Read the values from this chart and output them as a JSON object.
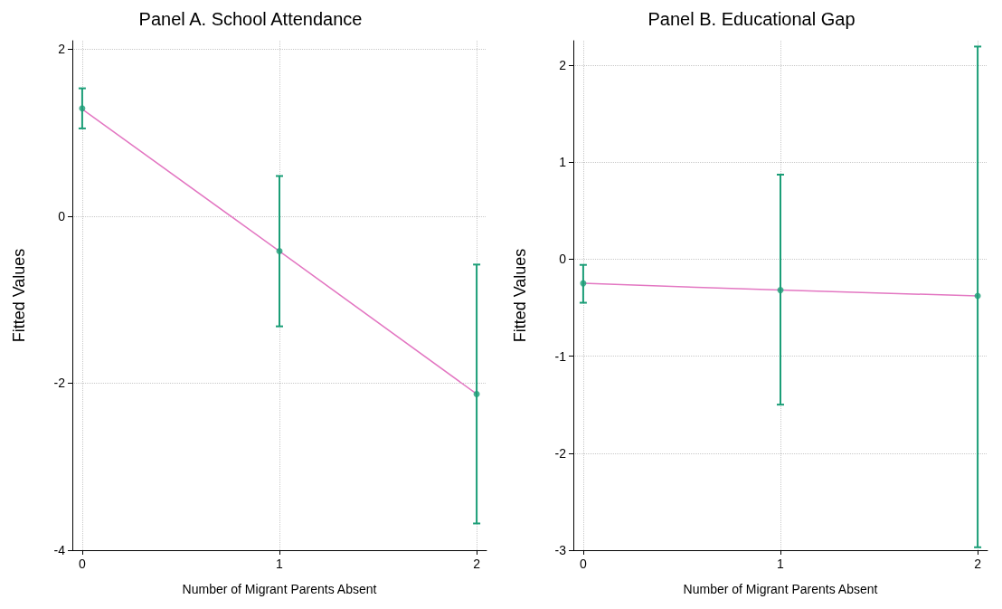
{
  "chart_data": [
    {
      "type": "line",
      "title": "Panel A. School Attendance",
      "xlabel": "Number of Migrant Parents Absent",
      "ylabel": "Fitted Values",
      "x": [
        0,
        1,
        2
      ],
      "xlim": [
        -0.05,
        2.05
      ],
      "xticks": [
        0,
        1,
        2
      ],
      "ylim": [
        -4,
        2.1
      ],
      "yticks": [
        -4,
        -2,
        0,
        2
      ],
      "grid": true,
      "marker": "none",
      "line_style": "solid",
      "series": [
        {
          "type": "line",
          "color": "#e377c2",
          "values": [
            1.28,
            -0.42,
            -2.13
          ]
        },
        {
          "type": "scatter",
          "color": "#1b9e77",
          "values": [
            1.29,
            -0.42,
            -2.13
          ],
          "errors": [
            [
              1.05,
              1.53
            ],
            [
              -1.32,
              0.48
            ],
            [
              -3.68,
              -0.58
            ]
          ]
        }
      ]
    },
    {
      "type": "line",
      "title": "Panel B. Educational Gap",
      "xlabel": "Number of Migrant Parents Absent",
      "ylabel": "Fitted Values",
      "x": [
        0,
        1,
        2
      ],
      "xlim": [
        -0.05,
        2.05
      ],
      "xticks": [
        0,
        1,
        2
      ],
      "ylim": [
        -3,
        2.25
      ],
      "yticks": [
        -3,
        -2,
        -1,
        0,
        1,
        2
      ],
      "grid": true,
      "marker": "none",
      "line_style": "solid",
      "series": [
        {
          "type": "line",
          "color": "#e377c2",
          "values": [
            -0.25,
            -0.32,
            -0.38
          ]
        },
        {
          "type": "scatter",
          "color": "#1b9e77",
          "values": [
            -0.25,
            -0.32,
            -0.38
          ],
          "errors": [
            [
              -0.45,
              -0.06
            ],
            [
              -1.5,
              0.87
            ],
            [
              -2.97,
              2.19
            ]
          ]
        }
      ]
    }
  ]
}
